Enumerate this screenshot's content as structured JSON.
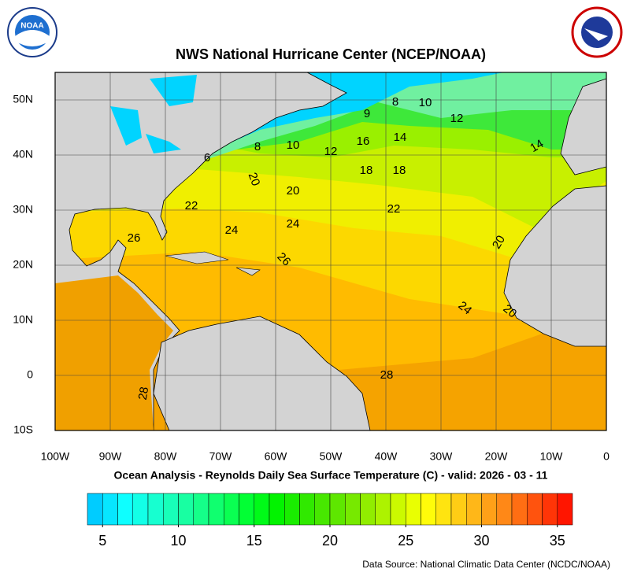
{
  "header": {
    "title": "NWS National Hurricane Center (NCEP/NOAA)",
    "logo_text": "NOAA"
  },
  "map": {
    "lon_range": [
      -100,
      0
    ],
    "lat_range": [
      -10,
      55
    ],
    "lon_ticks": [
      {
        "value": -100,
        "label": "100W"
      },
      {
        "value": -90,
        "label": "90W"
      },
      {
        "value": -80,
        "label": "80W"
      },
      {
        "value": -70,
        "label": "70W"
      },
      {
        "value": -60,
        "label": "60W"
      },
      {
        "value": -50,
        "label": "50W"
      },
      {
        "value": -40,
        "label": "40W"
      },
      {
        "value": -30,
        "label": "30W"
      },
      {
        "value": -20,
        "label": "20W"
      },
      {
        "value": -10,
        "label": "10W"
      },
      0
    ],
    "lat_ticks": [
      {
        "value": -10,
        "label": "10S"
      },
      0,
      {
        "value": 10,
        "label": "10N"
      },
      {
        "value": 20,
        "label": "20N"
      },
      {
        "value": 30,
        "label": "30N"
      },
      {
        "value": 40,
        "label": "40N"
      },
      {
        "value": 50,
        "label": "50N"
      }
    ],
    "contour_labels": [
      6,
      8,
      10,
      12,
      16,
      14,
      8,
      10,
      9,
      12,
      14,
      18,
      18,
      20,
      20,
      22,
      22,
      24,
      24,
      26,
      26,
      20,
      24,
      20,
      28,
      28
    ]
  },
  "subtitle": "Ocean Analysis - Reynolds Daily Sea Surface Temperature (C) - valid: 2026 - 03 - 11",
  "colorbar": {
    "range": [
      4,
      36
    ],
    "ticks": [
      5,
      10,
      15,
      20,
      25,
      30,
      35
    ]
  },
  "footer": {
    "source": "Data Source: National Climatic Data Center (NCDC/NOAA)"
  }
}
